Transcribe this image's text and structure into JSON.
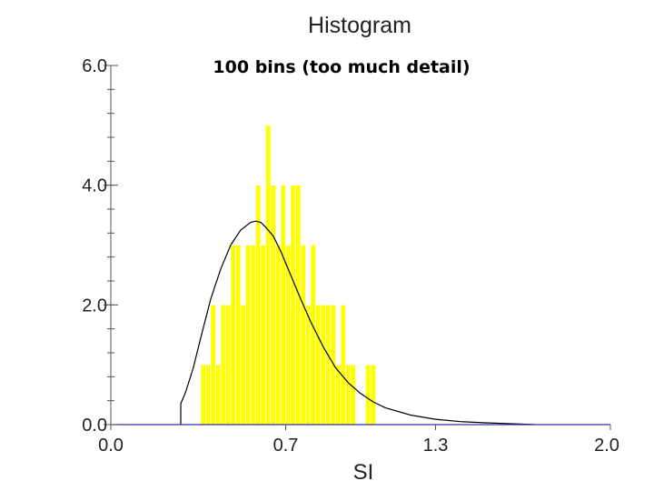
{
  "chart_data": {
    "type": "bar",
    "title": "Histogram",
    "subtitle": "100 bins (too much detail)",
    "xlabel": "SI",
    "ylabel": "",
    "xlim": [
      0.0,
      2.0
    ],
    "ylim": [
      0.0,
      6.0
    ],
    "x_ticks": [
      {
        "value": 0.0,
        "label": "0.0"
      },
      {
        "value": 0.7,
        "label": "0.7"
      },
      {
        "value": 1.3,
        "label": "1.3"
      },
      {
        "value": 2.0,
        "label": "2.0"
      }
    ],
    "y_ticks": [
      {
        "value": 0.0,
        "label": "0.0"
      },
      {
        "value": 2.0,
        "label": "2.0"
      },
      {
        "value": 4.0,
        "label": "4.0"
      },
      {
        "value": 6.0,
        "label": "6.0"
      }
    ],
    "y_minor_step": 0.4,
    "bin_width": 0.02,
    "bins": [
      {
        "x": 0.36,
        "count": 1
      },
      {
        "x": 0.38,
        "count": 1
      },
      {
        "x": 0.4,
        "count": 2
      },
      {
        "x": 0.42,
        "count": 1
      },
      {
        "x": 0.44,
        "count": 2
      },
      {
        "x": 0.46,
        "count": 2
      },
      {
        "x": 0.48,
        "count": 3
      },
      {
        "x": 0.5,
        "count": 3
      },
      {
        "x": 0.52,
        "count": 2
      },
      {
        "x": 0.54,
        "count": 3
      },
      {
        "x": 0.56,
        "count": 3
      },
      {
        "x": 0.58,
        "count": 4
      },
      {
        "x": 0.6,
        "count": 3
      },
      {
        "x": 0.62,
        "count": 5
      },
      {
        "x": 0.64,
        "count": 4
      },
      {
        "x": 0.66,
        "count": 3
      },
      {
        "x": 0.68,
        "count": 4
      },
      {
        "x": 0.7,
        "count": 3
      },
      {
        "x": 0.72,
        "count": 4
      },
      {
        "x": 0.74,
        "count": 4
      },
      {
        "x": 0.76,
        "count": 3
      },
      {
        "x": 0.78,
        "count": 2
      },
      {
        "x": 0.8,
        "count": 3
      },
      {
        "x": 0.82,
        "count": 2
      },
      {
        "x": 0.84,
        "count": 2
      },
      {
        "x": 0.86,
        "count": 2
      },
      {
        "x": 0.88,
        "count": 2
      },
      {
        "x": 0.9,
        "count": 1
      },
      {
        "x": 0.92,
        "count": 2
      },
      {
        "x": 0.94,
        "count": 1
      },
      {
        "x": 0.96,
        "count": 1
      },
      {
        "x": 1.02,
        "count": 1
      },
      {
        "x": 1.04,
        "count": 1
      }
    ],
    "density_curve": [
      [
        0.28,
        0.35
      ],
      [
        0.3,
        0.55
      ],
      [
        0.33,
        0.95
      ],
      [
        0.36,
        1.45
      ],
      [
        0.4,
        2.1
      ],
      [
        0.44,
        2.6
      ],
      [
        0.48,
        3.0
      ],
      [
        0.52,
        3.25
      ],
      [
        0.56,
        3.38
      ],
      [
        0.58,
        3.4
      ],
      [
        0.6,
        3.38
      ],
      [
        0.62,
        3.3
      ],
      [
        0.65,
        3.15
      ],
      [
        0.68,
        2.9
      ],
      [
        0.72,
        2.5
      ],
      [
        0.76,
        2.1
      ],
      [
        0.8,
        1.72
      ],
      [
        0.85,
        1.3
      ],
      [
        0.9,
        0.95
      ],
      [
        0.95,
        0.7
      ],
      [
        1.0,
        0.52
      ],
      [
        1.05,
        0.38
      ],
      [
        1.1,
        0.28
      ],
      [
        1.2,
        0.16
      ],
      [
        1.3,
        0.09
      ],
      [
        1.4,
        0.05
      ],
      [
        1.5,
        0.03
      ],
      [
        1.6,
        0.015
      ],
      [
        1.7,
        0.0
      ]
    ],
    "colors": {
      "bars": "#ffff00",
      "curve": "#000000",
      "x_axis": "#3333aa"
    }
  }
}
